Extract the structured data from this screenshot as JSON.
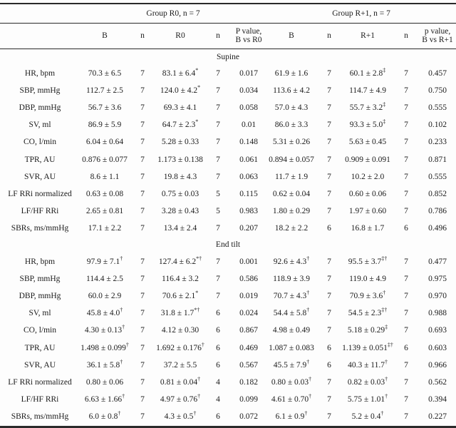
{
  "colors": {
    "background": "#fdfdfd",
    "text": "#1b1b1b",
    "rule": "#2a2a2a"
  },
  "table": {
    "group_headers": [
      {
        "label": "Group R0, n = 7"
      },
      {
        "label": "Group R+1, n = 7"
      }
    ],
    "column_headers": {
      "corner": "",
      "cols": [
        "B",
        "n",
        "R0",
        "n",
        "P value,\nB vs R0",
        "B",
        "n",
        "R+1",
        "n",
        "p value,\nB vs R+1"
      ]
    },
    "sections": [
      {
        "title": "Supine",
        "rows": [
          {
            "label": "HR, bpm",
            "cells": [
              {
                "v": "70.3 ± 6.5"
              },
              {
                "v": "7"
              },
              {
                "v": "83.1 ± 6.4",
                "s": "*"
              },
              {
                "v": "7"
              },
              {
                "v": "0.017"
              },
              {
                "v": "61.9 ± 1.6"
              },
              {
                "v": "7"
              },
              {
                "v": "60.1 ± 2.8",
                "s": "‡"
              },
              {
                "v": "7"
              },
              {
                "v": "0.457"
              }
            ]
          },
          {
            "label": "SBP, mmHg",
            "cells": [
              {
                "v": "112.7 ± 2.5"
              },
              {
                "v": "7"
              },
              {
                "v": "124.0 ± 4.2",
                "s": "*"
              },
              {
                "v": "7"
              },
              {
                "v": "0.034"
              },
              {
                "v": "113.6 ± 4.2"
              },
              {
                "v": "7"
              },
              {
                "v": "114.7 ± 4.9"
              },
              {
                "v": "7"
              },
              {
                "v": "0.750"
              }
            ]
          },
          {
            "label": "DBP, mmHg",
            "cells": [
              {
                "v": "56.7 ± 3.6"
              },
              {
                "v": "7"
              },
              {
                "v": "69.3 ± 4.1"
              },
              {
                "v": "7"
              },
              {
                "v": "0.058"
              },
              {
                "v": "57.0 ± 4.3"
              },
              {
                "v": "7"
              },
              {
                "v": "55.7 ± 3.2",
                "s": "‡"
              },
              {
                "v": "7"
              },
              {
                "v": "0.555"
              }
            ]
          },
          {
            "label": "SV, ml",
            "cells": [
              {
                "v": "86.9 ± 5.9"
              },
              {
                "v": "7"
              },
              {
                "v": "64.7 ± 2.3",
                "s": "*"
              },
              {
                "v": "7"
              },
              {
                "v": "0.01"
              },
              {
                "v": "86.0 ± 3.3"
              },
              {
                "v": "7"
              },
              {
                "v": "93.3 ± 5.0",
                "s": "‡"
              },
              {
                "v": "7"
              },
              {
                "v": "0.102"
              }
            ]
          },
          {
            "label": "CO, l/min",
            "cells": [
              {
                "v": "6.04 ± 0.64"
              },
              {
                "v": "7"
              },
              {
                "v": "5.28 ± 0.33"
              },
              {
                "v": "7"
              },
              {
                "v": "0.148"
              },
              {
                "v": "5.31 ± 0.26"
              },
              {
                "v": "7"
              },
              {
                "v": "5.63 ± 0.45"
              },
              {
                "v": "7"
              },
              {
                "v": "0.233"
              }
            ]
          },
          {
            "label": "TPR, AU",
            "cells": [
              {
                "v": "0.876 ± 0.077"
              },
              {
                "v": "7"
              },
              {
                "v": "1.173 ± 0.138"
              },
              {
                "v": "7"
              },
              {
                "v": "0.061"
              },
              {
                "v": "0.894 ± 0.057"
              },
              {
                "v": "7"
              },
              {
                "v": "0.909 ± 0.091"
              },
              {
                "v": "7"
              },
              {
                "v": "0.871"
              }
            ]
          },
          {
            "label": "SVR, AU",
            "cells": [
              {
                "v": "8.6 ± 1.1"
              },
              {
                "v": "7"
              },
              {
                "v": "19.8 ± 4.3"
              },
              {
                "v": "7"
              },
              {
                "v": "0.063"
              },
              {
                "v": "11.7 ± 1.9"
              },
              {
                "v": "7"
              },
              {
                "v": "10.2 ± 2.0"
              },
              {
                "v": "7"
              },
              {
                "v": "0.555"
              }
            ]
          },
          {
            "label": "LF RRi normalized",
            "cells": [
              {
                "v": "0.63 ± 0.08"
              },
              {
                "v": "7"
              },
              {
                "v": "0.75 ± 0.03"
              },
              {
                "v": "5"
              },
              {
                "v": "0.115"
              },
              {
                "v": "0.62 ± 0.04"
              },
              {
                "v": "7"
              },
              {
                "v": "0.60 ± 0.06"
              },
              {
                "v": "7"
              },
              {
                "v": "0.852"
              }
            ]
          },
          {
            "label": "LF/HF RRi",
            "cells": [
              {
                "v": "2.65 ± 0.81"
              },
              {
                "v": "7"
              },
              {
                "v": "3.28 ± 0.43"
              },
              {
                "v": "5"
              },
              {
                "v": "0.983"
              },
              {
                "v": "1.80 ± 0.29"
              },
              {
                "v": "7"
              },
              {
                "v": "1.97 ± 0.60"
              },
              {
                "v": "7"
              },
              {
                "v": "0.786"
              }
            ]
          },
          {
            "label": "SBRs, ms/mmHg",
            "cells": [
              {
                "v": "17.1 ± 2.2"
              },
              {
                "v": "7"
              },
              {
                "v": "13.4 ± 2.4"
              },
              {
                "v": "7"
              },
              {
                "v": "0.207"
              },
              {
                "v": "18.2 ± 2.2"
              },
              {
                "v": "6"
              },
              {
                "v": "16.8 ± 1.7"
              },
              {
                "v": "6"
              },
              {
                "v": "0.496"
              }
            ]
          }
        ]
      },
      {
        "title": "End tilt",
        "rows": [
          {
            "label": "HR, bpm",
            "cells": [
              {
                "v": "97.9 ± 7.1",
                "s": "†"
              },
              {
                "v": "7"
              },
              {
                "v": "127.4 ± 6.2",
                "s": "*†"
              },
              {
                "v": "7"
              },
              {
                "v": "0.001"
              },
              {
                "v": "92.6 ± 4.3",
                "s": "†"
              },
              {
                "v": "7"
              },
              {
                "v": "95.5 ± 3.7",
                "s": "‡†"
              },
              {
                "v": "7"
              },
              {
                "v": "0.477"
              }
            ]
          },
          {
            "label": "SBP, mmHg",
            "cells": [
              {
                "v": "114.4 ± 2.5"
              },
              {
                "v": "7"
              },
              {
                "v": "116.4 ± 3.2"
              },
              {
                "v": "7"
              },
              {
                "v": "0.586"
              },
              {
                "v": "118.9 ± 3.9"
              },
              {
                "v": "7"
              },
              {
                "v": "119.0 ± 4.9"
              },
              {
                "v": "7"
              },
              {
                "v": "0.975"
              }
            ]
          },
          {
            "label": "DBP, mmHg",
            "cells": [
              {
                "v": "60.0 ± 2.9"
              },
              {
                "v": "7"
              },
              {
                "v": "70.6 ± 2.1",
                "s": "*"
              },
              {
                "v": "7"
              },
              {
                "v": "0.019"
              },
              {
                "v": "70.7 ± 4.3",
                "s": "†"
              },
              {
                "v": "7"
              },
              {
                "v": "70.9 ± 3.6",
                "s": "†"
              },
              {
                "v": "7"
              },
              {
                "v": "0.970"
              }
            ]
          },
          {
            "label": "SV, ml",
            "cells": [
              {
                "v": "45.8 ± 4.0",
                "s": "†"
              },
              {
                "v": "7"
              },
              {
                "v": "31.8 ± 1.7",
                "s": "*†"
              },
              {
                "v": "6"
              },
              {
                "v": "0.024"
              },
              {
                "v": "54.4 ± 5.8",
                "s": "†"
              },
              {
                "v": "7"
              },
              {
                "v": "54.5 ± 2.3",
                "s": "‡†"
              },
              {
                "v": "7"
              },
              {
                "v": "0.988"
              }
            ]
          },
          {
            "label": "CO, l/min",
            "cells": [
              {
                "v": "4.30 ± 0.13",
                "s": "†"
              },
              {
                "v": "7"
              },
              {
                "v": "4.12 ± 0.30"
              },
              {
                "v": "6"
              },
              {
                "v": "0.867"
              },
              {
                "v": "4.98 ± 0.49"
              },
              {
                "v": "7"
              },
              {
                "v": "5.18 ± 0.29",
                "s": "‡"
              },
              {
                "v": "7"
              },
              {
                "v": "0.693"
              }
            ]
          },
          {
            "label": "TPR, AU",
            "cells": [
              {
                "v": "1.498 ± 0.099",
                "s": "†"
              },
              {
                "v": "7"
              },
              {
                "v": "1.692 ± 0.176",
                "s": "†"
              },
              {
                "v": "6"
              },
              {
                "v": "0.469"
              },
              {
                "v": "1.087 ± 0.083"
              },
              {
                "v": "6"
              },
              {
                "v": "1.139 ± 0.051",
                "s": "‡†"
              },
              {
                "v": "6"
              },
              {
                "v": "0.603"
              }
            ]
          },
          {
            "label": "SVR, AU",
            "cells": [
              {
                "v": "36.1 ± 5.8",
                "s": "†"
              },
              {
                "v": "7"
              },
              {
                "v": "37.2 ± 5.5"
              },
              {
                "v": "6"
              },
              {
                "v": "0.567"
              },
              {
                "v": "45.5 ± 7.9",
                "s": "†"
              },
              {
                "v": "6"
              },
              {
                "v": "40.3 ± 11.7",
                "s": "†"
              },
              {
                "v": "7"
              },
              {
                "v": "0.966"
              }
            ]
          },
          {
            "label": "LF RRi normalized",
            "cells": [
              {
                "v": "0.80 ± 0.06"
              },
              {
                "v": "7"
              },
              {
                "v": "0.81 ± 0.04",
                "s": "†"
              },
              {
                "v": "4"
              },
              {
                "v": "0.182"
              },
              {
                "v": "0.80 ± 0.03",
                "s": "†"
              },
              {
                "v": "7"
              },
              {
                "v": "0.82 ± 0.03",
                "s": "†"
              },
              {
                "v": "7"
              },
              {
                "v": "0.562"
              }
            ]
          },
          {
            "label": "LF/HF RRi",
            "cells": [
              {
                "v": "6.63 ± 1.66",
                "s": "†"
              },
              {
                "v": "7"
              },
              {
                "v": "4.97 ± 0.76",
                "s": "†"
              },
              {
                "v": "4"
              },
              {
                "v": "0.099"
              },
              {
                "v": "4.61 ± 0.70",
                "s": "†"
              },
              {
                "v": "7"
              },
              {
                "v": "5.75 ± 1.01",
                "s": "†"
              },
              {
                "v": "7"
              },
              {
                "v": "0.394"
              }
            ]
          },
          {
            "label": "SBRs, ms/mmHg",
            "cells": [
              {
                "v": "6.0 ± 0.8",
                "s": "†"
              },
              {
                "v": "7"
              },
              {
                "v": "4.3 ± 0.5",
                "s": "†"
              },
              {
                "v": "6"
              },
              {
                "v": "0.072"
              },
              {
                "v": "6.1 ± 0.9",
                "s": "†"
              },
              {
                "v": "7"
              },
              {
                "v": "5.2 ± 0.4",
                "s": "†"
              },
              {
                "v": "7"
              },
              {
                "v": "0.227"
              }
            ]
          }
        ]
      }
    ]
  }
}
